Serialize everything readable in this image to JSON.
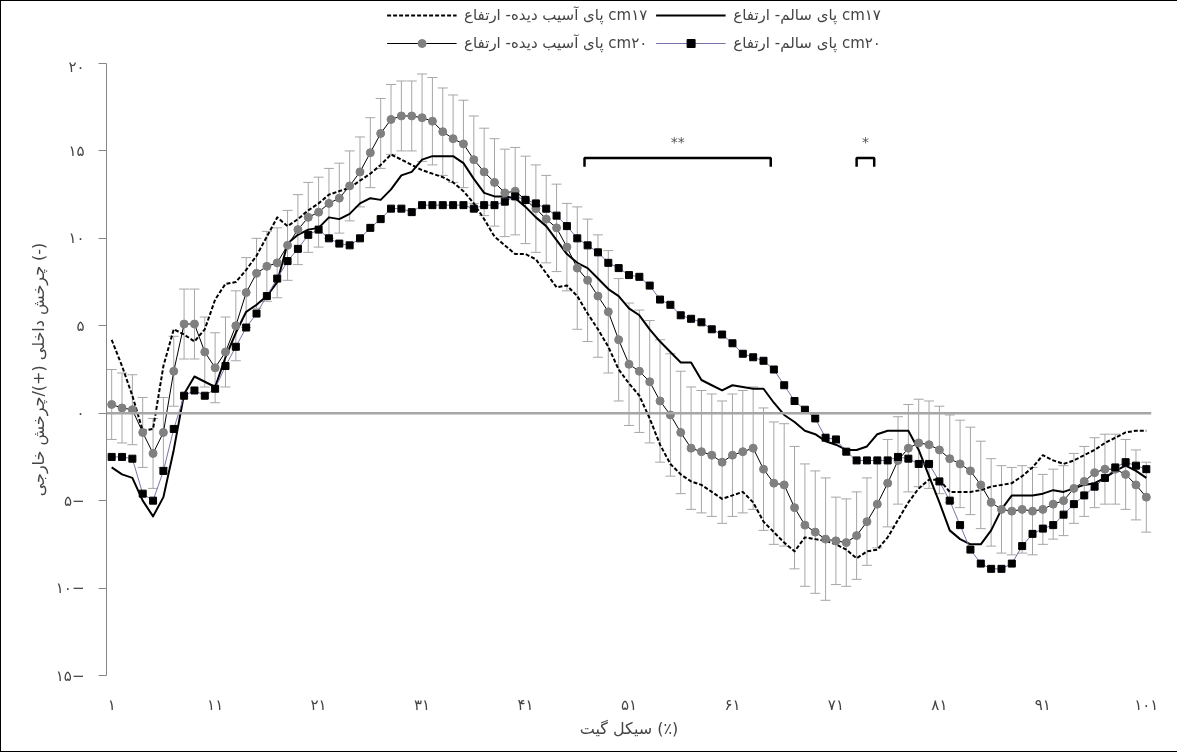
{
  "chart_data": {
    "type": "line",
    "xlabel": "سیکل گیت (٪)",
    "ylabel": "چرخش داخلی (+)/چرخش خارجی (-)",
    "x": [
      1,
      2,
      3,
      4,
      5,
      6,
      7,
      8,
      9,
      10,
      11,
      12,
      13,
      14,
      15,
      16,
      17,
      18,
      19,
      20,
      21,
      22,
      23,
      24,
      25,
      26,
      27,
      28,
      29,
      30,
      31,
      32,
      33,
      34,
      35,
      36,
      37,
      38,
      39,
      40,
      41,
      42,
      43,
      44,
      45,
      46,
      47,
      48,
      49,
      50,
      51,
      52,
      53,
      54,
      55,
      56,
      57,
      58,
      59,
      60,
      61,
      62,
      63,
      64,
      65,
      66,
      67,
      68,
      69,
      70,
      71,
      72,
      73,
      74,
      75,
      76,
      77,
      78,
      79,
      80,
      81,
      82,
      83,
      84,
      85,
      86,
      87,
      88,
      89,
      90,
      91,
      92,
      93,
      94,
      95,
      96,
      97,
      98,
      99,
      100,
      101
    ],
    "series": [
      {
        "name": "پای آسیب دیده- ارتفاع cm۱۷",
        "color": "#000000",
        "line_style": "dashed",
        "marker": "none",
        "values": [
          4.2,
          2.7,
          1.0,
          -1.0,
          -0.9,
          2.7,
          4.8,
          4.5,
          4.1,
          4.8,
          6.5,
          7.4,
          7.5,
          8.2,
          9.0,
          10.1,
          11.2,
          10.7,
          11.1,
          11.6,
          12.0,
          12.5,
          12.7,
          12.9,
          13.3,
          13.7,
          14.2,
          14.8,
          14.5,
          14.2,
          13.9,
          13.7,
          13.5,
          13.2,
          12.7,
          12.0,
          11.1,
          10.1,
          9.6,
          9.1,
          9.1,
          8.8,
          8.0,
          7.2,
          7.3,
          6.7,
          5.7,
          4.8,
          3.8,
          2.5,
          1.7,
          1.0,
          -0.3,
          -1.8,
          -2.9,
          -3.5,
          -3.9,
          -4.1,
          -4.5,
          -4.9,
          -4.7,
          -4.5,
          -5.1,
          -6.2,
          -6.8,
          -7.4,
          -7.9,
          -7.1,
          -7.2,
          -7.3,
          -7.5,
          -7.8,
          -8.3,
          -7.9,
          -7.8,
          -7.1,
          -6.1,
          -5.1,
          -4.3,
          -3.8,
          -3.8,
          -4.5,
          -4.5,
          -4.5,
          -4.4,
          -4.2,
          -4.1,
          -4.0,
          -3.6,
          -3.1,
          -2.4,
          -2.7,
          -2.9,
          -2.7,
          -2.4,
          -2.1,
          -1.7,
          -1.4,
          -1.1,
          -1.0,
          -1.0
        ]
      },
      {
        "name": "پای سالم- ارتفاع cm۱۷",
        "color": "#000000",
        "line_style": "solid",
        "marker": "none",
        "values": [
          -3.1,
          -3.5,
          -3.7,
          -5.0,
          -5.9,
          -4.8,
          -2.1,
          1.1,
          2.1,
          1.8,
          1.5,
          3.2,
          4.6,
          5.8,
          6.2,
          6.7,
          7.5,
          9.7,
          10.2,
          10.5,
          10.6,
          11.2,
          11.1,
          11.4,
          12.0,
          12.3,
          12.2,
          12.8,
          13.6,
          13.8,
          14.5,
          14.7,
          14.7,
          14.7,
          14.3,
          13.4,
          12.6,
          12.4,
          12.4,
          12.3,
          11.8,
          11.2,
          10.7,
          9.9,
          9.1,
          8.6,
          8.3,
          7.7,
          7.1,
          6.7,
          6.0,
          5.6,
          4.8,
          4.1,
          3.5,
          2.9,
          2.9,
          1.9,
          1.6,
          1.3,
          1.6,
          1.5,
          1.4,
          1.4,
          0.6,
          -0.1,
          -0.5,
          -1.0,
          -1.2,
          -1.6,
          -1.8,
          -2.1,
          -2.1,
          -1.9,
          -1.2,
          -1.0,
          -1.0,
          -1.0,
          -2.1,
          -3.6,
          -5.1,
          -6.7,
          -7.2,
          -7.5,
          -7.5,
          -6.7,
          -5.5,
          -4.7,
          -4.7,
          -4.7,
          -4.6,
          -4.4,
          -4.5,
          -4.3,
          -4.1,
          -4.0,
          -3.7,
          -3.3,
          -3.0,
          -3.3,
          -3.7
        ]
      },
      {
        "name": "پای آسیب دیده- ارتفاع cm۲۰",
        "color": "#808080",
        "line_style": "solid",
        "marker": "circle",
        "values": [
          0.5,
          0.3,
          0.2,
          -1.1,
          -2.3,
          -1.1,
          2.4,
          5.1,
          5.1,
          3.5,
          2.6,
          3.5,
          5.0,
          6.9,
          8.0,
          8.4,
          8.6,
          9.6,
          10.5,
          11.2,
          11.5,
          12.0,
          12.3,
          13.0,
          13.8,
          14.9,
          16.0,
          16.8,
          17.0,
          17.0,
          16.9,
          16.7,
          16.1,
          15.7,
          15.4,
          14.5,
          13.8,
          13.2,
          12.6,
          12.7,
          12.2,
          11.7,
          11.1,
          10.6,
          9.5,
          8.3,
          7.6,
          6.7,
          5.8,
          4.2,
          2.8,
          2.4,
          1.8,
          0.7,
          -0.1,
          -1.1,
          -2.0,
          -2.2,
          -2.4,
          -2.8,
          -2.4,
          -2.2,
          -2.0,
          -3.2,
          -4.0,
          -4.1,
          -5.4,
          -6.4,
          -6.8,
          -7.2,
          -7.3,
          -7.4,
          -7.0,
          -6.2,
          -5.2,
          -4.0,
          -2.7,
          -2.0,
          -1.7,
          -1.8,
          -2.1,
          -2.6,
          -2.9,
          -3.3,
          -4.1,
          -5.1,
          -5.5,
          -5.6,
          -5.5,
          -5.6,
          -5.5,
          -5.2,
          -5.0,
          -4.3,
          -3.9,
          -3.4,
          -3.2,
          -3.2,
          -3.5,
          -4.1,
          -4.8
        ],
        "errors": [
          2,
          2,
          2,
          2,
          2,
          2,
          2,
          2,
          2,
          2,
          2,
          2,
          2,
          2,
          2,
          2,
          2,
          2,
          2,
          2,
          2,
          2,
          2,
          2,
          2,
          2,
          2,
          2,
          2,
          2,
          2.5,
          2.5,
          2.5,
          2.5,
          2.5,
          2.5,
          2.5,
          2.5,
          2.5,
          2.5,
          2.5,
          2.5,
          2.5,
          2.5,
          2.5,
          3.5,
          3.5,
          3.5,
          3.5,
          3.5,
          3.5,
          3.5,
          3.5,
          3.5,
          3.5,
          3.5,
          3.5,
          3.5,
          3.5,
          3.5,
          3.5,
          3.5,
          3.5,
          3.5,
          3.5,
          3.5,
          3.5,
          3.5,
          3.5,
          3.5,
          2.5,
          2.5,
          2.5,
          2.5,
          2.5,
          2.5,
          2.5,
          2.5,
          2.5,
          2.5,
          2.5,
          2.5,
          2.5,
          2.5,
          2.5,
          2.5,
          2.5,
          2.5,
          2.5,
          2.5,
          2,
          2,
          2,
          2,
          2,
          2,
          2,
          2,
          2,
          2,
          2
        ]
      },
      {
        "name": "پای سالم- ارتفاع cm۲۰",
        "color": "#000000",
        "line_style": "solid",
        "marker": "square",
        "values": [
          -2.5,
          -2.5,
          -2.6,
          -4.6,
          -5.0,
          -3.3,
          -0.9,
          1.0,
          1.3,
          1.0,
          1.4,
          2.7,
          3.8,
          4.9,
          5.7,
          6.7,
          7.7,
          8.7,
          9.4,
          10.2,
          10.5,
          10.0,
          9.7,
          9.6,
          10.0,
          10.6,
          11.1,
          11.7,
          11.7,
          11.5,
          11.9,
          11.9,
          11.9,
          11.9,
          11.9,
          11.7,
          11.9,
          11.9,
          12.1,
          12.4,
          12.2,
          12.0,
          11.7,
          11.3,
          10.7,
          10.0,
          9.6,
          9.2,
          8.6,
          8.3,
          7.9,
          7.8,
          7.3,
          6.5,
          6.2,
          5.6,
          5.4,
          5.2,
          4.8,
          4.5,
          4.0,
          3.4,
          3.2,
          3.0,
          2.5,
          1.6,
          0.7,
          0.2,
          -0.3,
          -1.4,
          -1.5,
          -2.2,
          -2.7,
          -2.7,
          -2.7,
          -2.7,
          -2.5,
          -2.6,
          -2.9,
          -2.9,
          -3.9,
          -5.0,
          -6.4,
          -7.8,
          -8.6,
          -8.9,
          -8.9,
          -8.6,
          -7.6,
          -6.9,
          -6.6,
          -6.4,
          -5.8,
          -5.2,
          -4.7,
          -4.2,
          -3.7,
          -3.1,
          -2.8,
          -3.0,
          -3.2
        ]
      }
    ],
    "xlim": [
      0.5,
      101.5
    ],
    "xticks": [
      {
        "value": 1,
        "label": "۱"
      },
      {
        "value": 11,
        "label": "۱۱"
      },
      {
        "value": 21,
        "label": "۲۱"
      },
      {
        "value": 31,
        "label": "۳۱"
      },
      {
        "value": 41,
        "label": "۴۱"
      },
      {
        "value": 51,
        "label": "۵۱"
      },
      {
        "value": 61,
        "label": "۶۱"
      },
      {
        "value": 71,
        "label": "۷۱"
      },
      {
        "value": 81,
        "label": "۸۱"
      },
      {
        "value": 91,
        "label": "۹۱"
      },
      {
        "value": 101,
        "label": "۱۰۱"
      }
    ],
    "ylim": [
      -15,
      20
    ],
    "yticks": [
      {
        "value": 20,
        "label": "۲۰"
      },
      {
        "value": 15,
        "label": "۱۵"
      },
      {
        "value": 10,
        "label": "۱۰"
      },
      {
        "value": 5,
        "label": "۵"
      },
      {
        "value": 0,
        "label": "۰"
      },
      {
        "value": -5,
        "label": "۵−"
      },
      {
        "value": -10,
        "label": "۱۰−"
      },
      {
        "value": -15,
        "label": "۱۵−"
      }
    ],
    "ref_lines": [
      {
        "axis": "y",
        "value": 0,
        "color": "#a6a6a6"
      }
    ],
    "annotations": [
      "**",
      "*"
    ],
    "grid": false,
    "legend": "top"
  }
}
